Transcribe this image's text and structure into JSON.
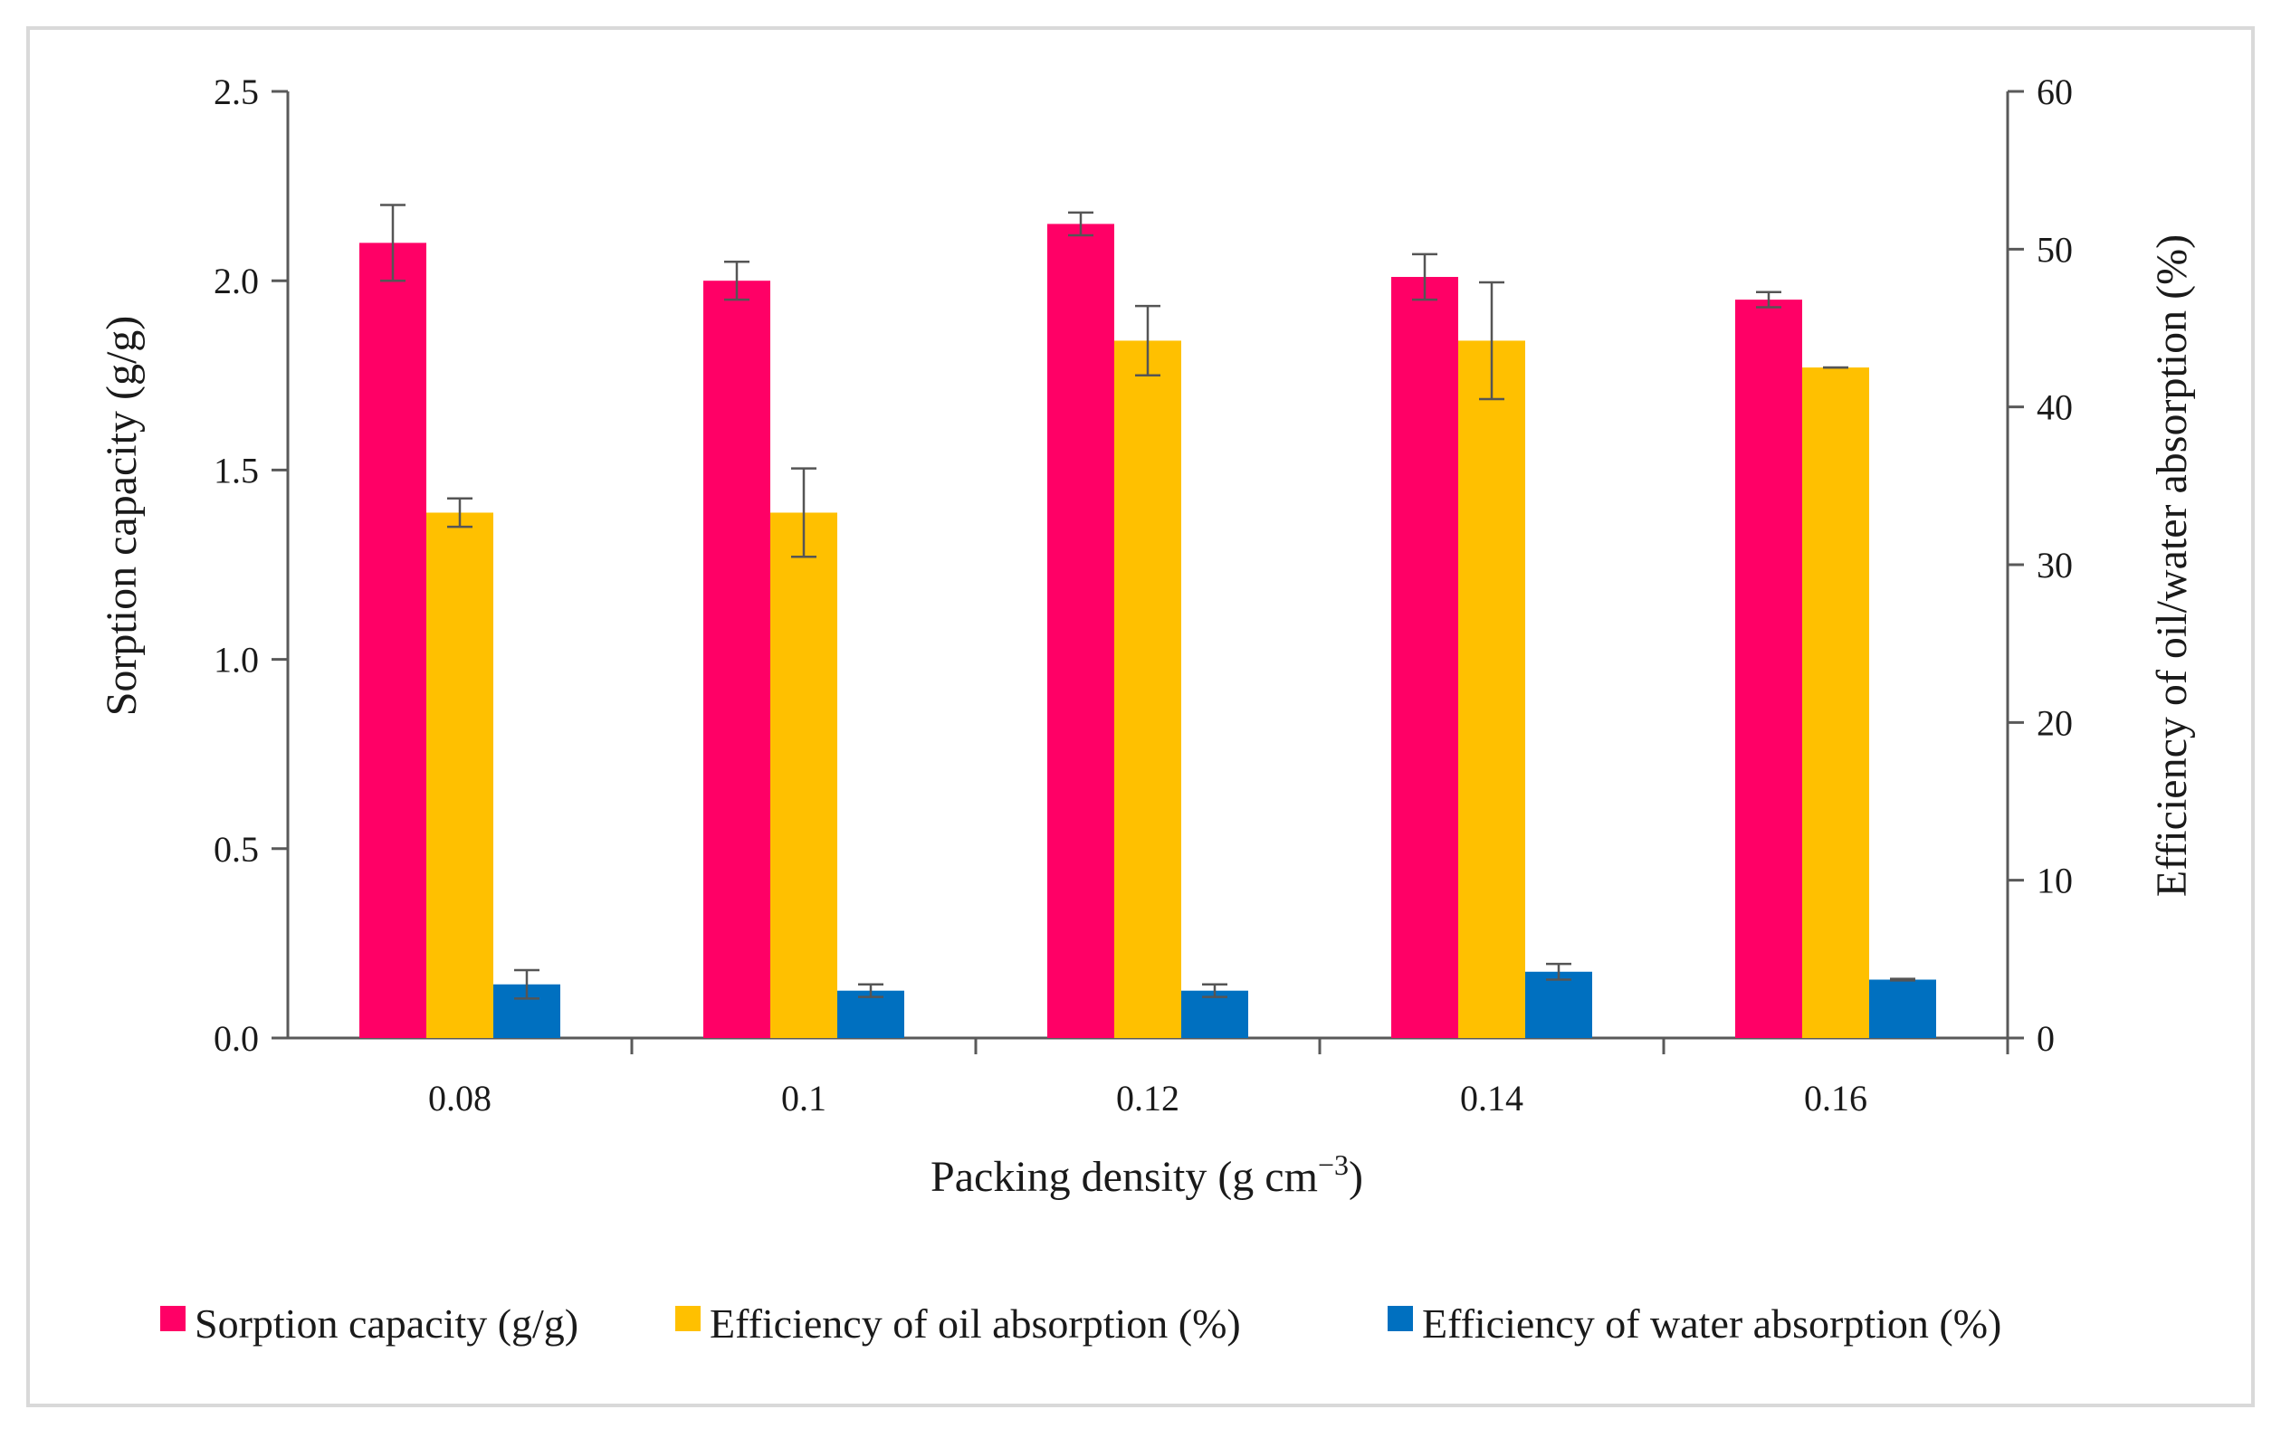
{
  "chart_data": {
    "type": "bar",
    "xlabel": "Packing density (g cm",
    "xlabel_superscript": "−3",
    "xlabel_suffix": ")",
    "ylabel": "Sorption capacity (g/g)",
    "y2label": "Efficiency of oil/water absorption (%)",
    "categories": [
      "0.08",
      "0.1",
      "0.12",
      "0.14",
      "0.16"
    ],
    "ylim": [
      0,
      2.5
    ],
    "y2lim": [
      0,
      60
    ],
    "yticks": [
      "0.0",
      "0.5",
      "1.0",
      "1.5",
      "2.0",
      "2.5"
    ],
    "y2ticks": [
      "0",
      "10",
      "20",
      "30",
      "40",
      "50",
      "60"
    ],
    "legend_position": "bottom",
    "series": [
      {
        "name": "Sorption capacity (g/g)",
        "axis": "left",
        "color": "#ff0066",
        "values": [
          2.1,
          2.0,
          2.15,
          2.01,
          1.95
        ],
        "errors": [
          0.1,
          0.05,
          0.03,
          0.06,
          0.02
        ]
      },
      {
        "name": "Efficiency of oil absorption (%)",
        "axis": "right",
        "color": "#ffc000",
        "values": [
          33.3,
          33.3,
          44.2,
          44.2,
          42.5
        ],
        "errors": [
          0.9,
          2.8,
          2.2,
          3.7,
          0.0
        ]
      },
      {
        "name": "Efficiency of water absorption (%)",
        "axis": "right",
        "color": "#0070c0",
        "values": [
          3.4,
          3.0,
          3.0,
          4.2,
          3.7
        ],
        "errors": [
          0.9,
          0.4,
          0.4,
          0.5,
          0.05
        ]
      }
    ]
  }
}
